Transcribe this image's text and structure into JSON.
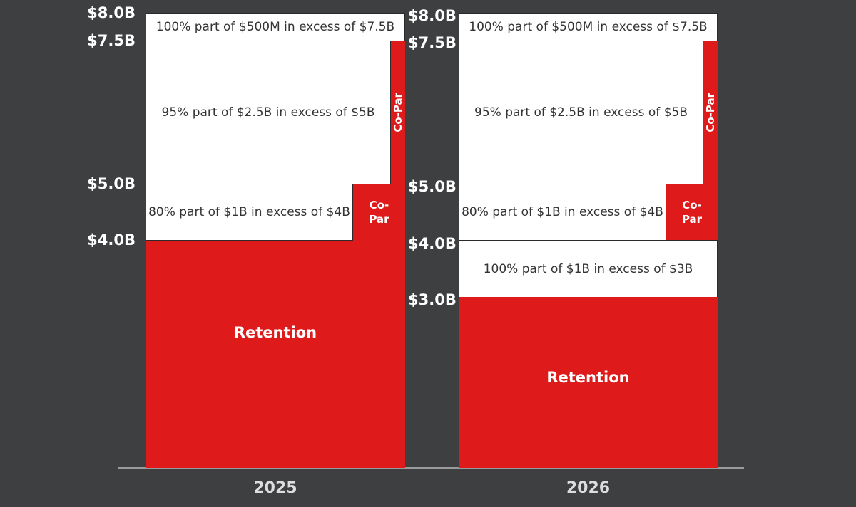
{
  "towers": [
    {
      "year": "2025",
      "ticks": [
        "$8.0B",
        "$7.5B",
        "$5.0B",
        "$4.0B"
      ],
      "layers": [
        {
          "label": "100% part of $500M in excess of $7.5B"
        },
        {
          "label": "95% part of $2.5B in excess of $5B",
          "co_par": "Co-Par"
        },
        {
          "label": "80% part of $1B in excess of $4B",
          "co_par": [
            "Co-",
            "Par"
          ]
        },
        {
          "label": "Retention"
        }
      ]
    },
    {
      "year": "2026",
      "ticks": [
        "$8.0B",
        "$7.5B",
        "$5.0B",
        "$4.0B",
        "$3.0B"
      ],
      "layers": [
        {
          "label": "100% part of $500M in excess of $7.5B"
        },
        {
          "label": "95% part of $2.5B in excess of $5B",
          "co_par": "Co-Par"
        },
        {
          "label": "80% part of $1B in excess of $4B",
          "co_par": [
            "Co-",
            "Par"
          ]
        },
        {
          "label": "100% part of $1B in excess of $3B"
        },
        {
          "label": "Retention"
        }
      ]
    }
  ]
}
